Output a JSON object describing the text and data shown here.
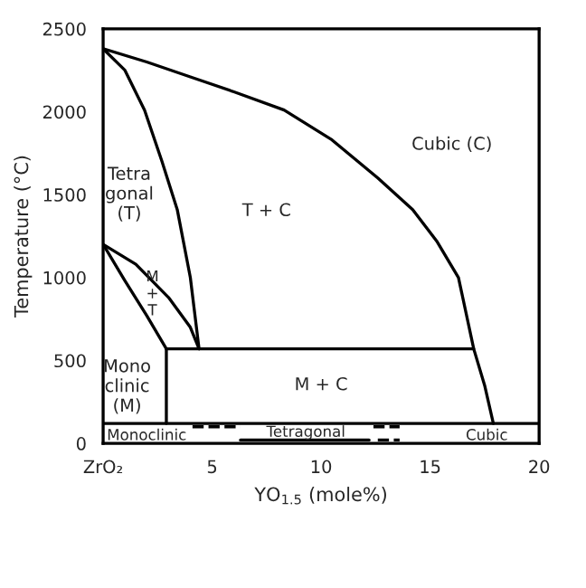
{
  "chart_data": {
    "type": "line",
    "xlabel": "YO$_{1.5}$ (mole%)",
    "ylabel": "Temperature (°C)",
    "xlim": [
      0,
      20
    ],
    "ylim": [
      0,
      2500
    ],
    "xticks": [
      {
        "value": 0,
        "label": "ZrO₂"
      },
      5,
      10,
      15,
      20
    ],
    "yticks": [
      0,
      500,
      1000,
      1500,
      2000,
      2500
    ],
    "grid": false,
    "legend": false,
    "marker": "none",
    "series": [
      {
        "color": "#000000",
        "line_style": "solid",
        "x": [
          0,
          2,
          4,
          6,
          8.3,
          10.5,
          12.6,
          14.2,
          15.3,
          16.3,
          17.0,
          17.5,
          17.9
        ],
        "values": [
          2380,
          2300,
          2210,
          2120,
          2010,
          1830,
          1600,
          1410,
          1220,
          1000,
          570,
          350,
          120
        ]
      },
      {
        "color": "#000000",
        "line_style": "solid",
        "x": [
          0,
          1.0,
          1.9,
          2.7,
          3.4,
          4.0,
          4.4
        ],
        "values": [
          2380,
          2250,
          2010,
          1700,
          1410,
          1000,
          570
        ]
      },
      {
        "color": "#000000",
        "line_style": "solid",
        "x": [
          0,
          1.0,
          2.0,
          2.9
        ],
        "values": [
          1200,
          980,
          770,
          570
        ]
      },
      {
        "color": "#000000",
        "line_style": "solid",
        "x": [
          0,
          1.5,
          3.0,
          4.0,
          4.4
        ],
        "values": [
          1200,
          1080,
          880,
          700,
          570
        ]
      },
      {
        "color": "#000000",
        "line_style": "solid",
        "x": [
          2.9,
          17.0
        ],
        "values": [
          570,
          570
        ]
      },
      {
        "color": "#000000",
        "line_style": "solid",
        "x": [
          2.9,
          2.9
        ],
        "values": [
          570,
          120
        ]
      },
      {
        "color": "#000000",
        "line_style": "solid",
        "x": [
          0,
          20
        ],
        "values": [
          120,
          120
        ]
      },
      {
        "color": "#000000",
        "line_style": "dashed",
        "x": [
          4.1,
          6.3
        ],
        "values": [
          100,
          100
        ]
      },
      {
        "color": "#000000",
        "line_style": "solid",
        "x": [
          6.3,
          12.2
        ],
        "values": [
          20,
          20
        ]
      },
      {
        "color": "#000000",
        "line_style": "dashed",
        "x": [
          12.4,
          13.6
        ],
        "values": [
          100,
          100
        ]
      },
      {
        "color": "#000000",
        "line_style": "dashed",
        "x": [
          12.6,
          13.6
        ],
        "values": [
          20,
          20
        ]
      }
    ],
    "annotations": [
      "Cubic (C)",
      "Tetra\ngonal\n(T)",
      "T + C",
      "M\n+\nT",
      "Mono\nclinic\n(M)",
      "M + C",
      "Monoclinic",
      "Tetragonal",
      "Cubic"
    ]
  }
}
